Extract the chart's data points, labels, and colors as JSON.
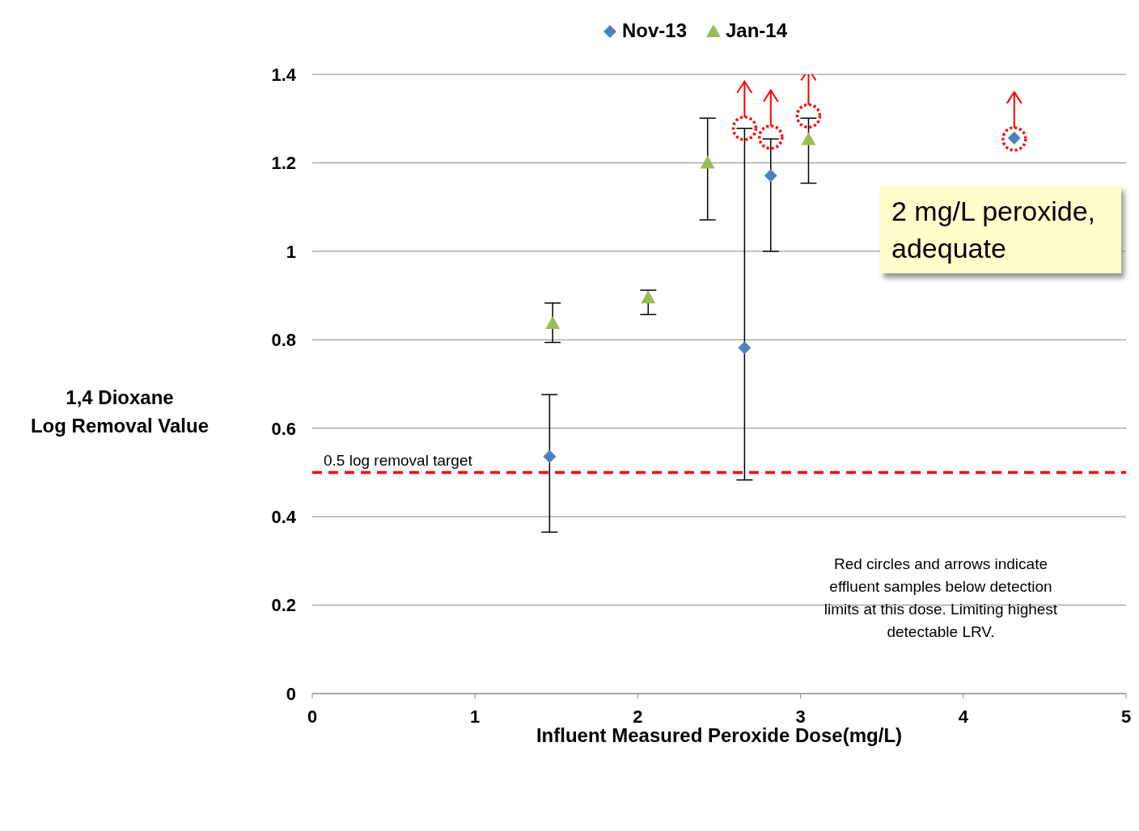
{
  "chart_data": {
    "type": "scatter",
    "xlabel": "Influent Measured Peroxide Dose(mg/L)",
    "ylabel": "1,4 Dioxane\nLog Removal Value",
    "xlim": [
      0,
      5
    ],
    "xticks": [
      0,
      1,
      2,
      3,
      4,
      5
    ],
    "ylim": [
      0,
      1.4
    ],
    "yticks": [
      0,
      {
        "value": 0.2,
        "label": "0.2"
      },
      {
        "value": 0.4,
        "label": "0.4"
      },
      {
        "value": 0.6,
        "label": "0.6"
      },
      {
        "value": 0.8,
        "label": "0.8"
      },
      1,
      {
        "value": 1.2,
        "label": "1.2"
      },
      {
        "value": 1.4,
        "label": "1.4"
      }
    ],
    "grid": "y",
    "legend": "top",
    "series": [
      {
        "name": "Nov-13",
        "color": "#4f81bd",
        "marker": "diamond",
        "x": [
          1.458,
          2.656,
          2.817,
          4.313
        ],
        "values": [
          0.536,
          0.782,
          1.171,
          1.256
        ],
        "errors": [
          [
            0.365,
            0.676
          ],
          [
            0.483,
            1.278
          ],
          [
            1.0,
            1.254
          ],
          null
        ]
      },
      {
        "name": "Jan-14",
        "color": "#9bbb59",
        "marker": "triangle",
        "x": [
          1.477,
          2.064,
          2.429,
          3.049
        ],
        "values": [
          0.837,
          0.895,
          1.2,
          1.253
        ],
        "errors": [
          [
            0.794,
            0.883
          ],
          [
            0.857,
            0.912
          ],
          [
            1.071,
            1.301
          ],
          [
            1.154,
            1.301
          ]
        ]
      },
      {
        "color": "#ff0000",
        "marker": "circle",
        "line_style": "dotted",
        "x": [
          2.656,
          2.817,
          3.049,
          4.313
        ],
        "values": [
          1.278,
          1.258,
          1.306,
          1.254
        ]
      }
    ],
    "ref_lines": [
      {
        "axis": "y",
        "value": 0.5,
        "label": "0.5 log removal target",
        "color": "#ff0000",
        "line_style": "dashed"
      }
    ],
    "annotations": [
      "2 mg/L peroxide, adequate",
      "Red circles and arrows indicate effluent samples below detection limits at this dose. Limiting highest detectable LRV."
    ]
  }
}
